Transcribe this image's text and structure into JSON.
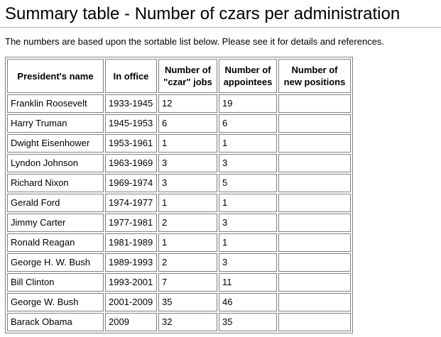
{
  "page": {
    "title": "Summary table - Number of czars per administration",
    "note": "The numbers are based upon the sortable list below. Please see it for details and references."
  },
  "table": {
    "columns": [
      "President's name",
      "In office",
      "Number of\n\"czar\" jobs",
      "Number of\nappointees",
      "Number of\nnew positions"
    ],
    "rows": [
      [
        "Franklin Roosevelt",
        "1933-1945",
        "12",
        "19",
        ""
      ],
      [
        "Harry Truman",
        "1945-1953",
        "6",
        "6",
        ""
      ],
      [
        "Dwight Eisenhower",
        "1953-1961",
        "1",
        "1",
        ""
      ],
      [
        "Lyndon Johnson",
        "1963-1969",
        "3",
        "3",
        ""
      ],
      [
        "Richard Nixon",
        "1969-1974",
        "3",
        "5",
        ""
      ],
      [
        "Gerald Ford",
        "1974-1977",
        "1",
        "1",
        ""
      ],
      [
        "Jimmy Carter",
        "1977-1981",
        "2",
        "3",
        ""
      ],
      [
        "Ronald Reagan",
        "1981-1989",
        "1",
        "1",
        ""
      ],
      [
        "George H. W. Bush",
        "1989-1993",
        "2",
        "3",
        ""
      ],
      [
        "Bill Clinton",
        "1993-2001",
        "7",
        "11",
        ""
      ],
      [
        "George W. Bush",
        "2001-2009",
        "35",
        "46",
        ""
      ],
      [
        "Barack Obama",
        "2009",
        "32",
        "35",
        ""
      ]
    ]
  },
  "colors": {
    "table_border": "#808080",
    "heading_rule": "#aaaaaa",
    "text": "#000000",
    "background": "#ffffff"
  }
}
